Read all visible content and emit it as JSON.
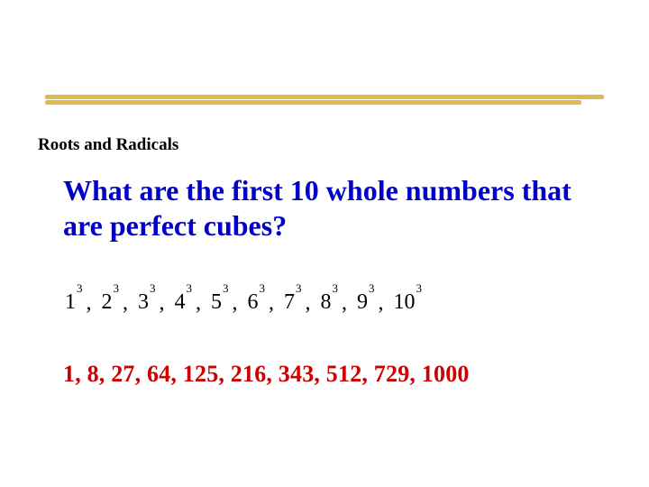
{
  "rule": {
    "color": "#e0b94f"
  },
  "sectionLabel": {
    "text": "Roots and Radicals",
    "color": "#000000"
  },
  "question": {
    "text": "What are the first 10 whole numbers that are perfect cubes?",
    "color": "#0000c8"
  },
  "cubes": {
    "bases": [
      "1",
      "2",
      "3",
      "4",
      "5",
      "6",
      "7",
      "8",
      "9",
      "10"
    ],
    "exponent": "3",
    "separator": ",",
    "color": "#000000"
  },
  "answers": {
    "text": "1,   8,   27,  64,  125, 216,  343,  512, 729, 1000",
    "color": "#cc0000"
  }
}
